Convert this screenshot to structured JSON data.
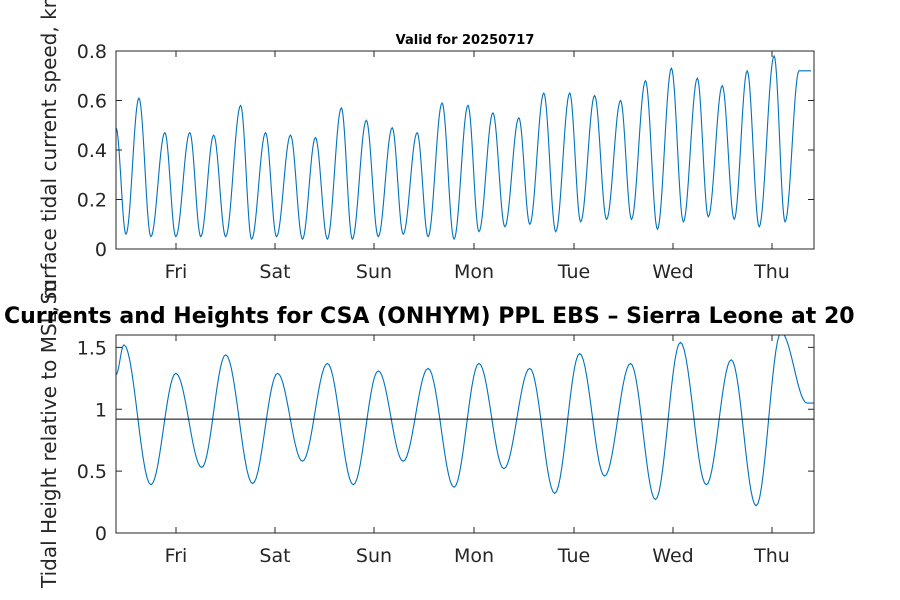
{
  "chart_data": [
    {
      "type": "line",
      "title": "Valid for 20250717",
      "xlabel": "",
      "ylabel": "Surface tidal current speed, kn",
      "x_tick_labels": [
        "Fri",
        "Sat",
        "Sun",
        "Mon",
        "Tue",
        "Wed",
        "Thu"
      ],
      "xlim_days": [
        0,
        7
      ],
      "ylim": [
        0,
        0.8
      ],
      "yticks": [
        "0",
        "0.2",
        "0.4",
        "0.6",
        "0.8"
      ],
      "grid": false,
      "line_color": "#0072bd",
      "series": [
        {
          "name": "",
          "x_days": [
            0.0,
            0.1,
            0.23,
            0.35,
            0.49,
            0.6,
            0.74,
            0.85,
            0.98,
            1.1,
            1.25,
            1.36,
            1.5,
            1.61,
            1.75,
            1.87,
            2.0,
            2.12,
            2.26,
            2.37,
            2.51,
            2.63,
            2.77,
            2.88,
            3.02,
            3.13,
            3.27,
            3.39,
            3.53,
            3.64,
            3.78,
            3.9,
            4.04,
            4.15,
            4.29,
            4.41,
            4.55,
            4.66,
            4.8,
            4.92,
            5.06,
            5.17,
            5.31,
            5.43,
            5.57,
            5.69,
            5.83,
            5.94,
            6.08,
            6.2,
            6.33,
            6.45,
            6.6,
            6.71,
            6.85,
            6.97
          ],
          "values": [
            0.49,
            0.06,
            0.61,
            0.05,
            0.47,
            0.05,
            0.47,
            0.05,
            0.46,
            0.05,
            0.58,
            0.04,
            0.47,
            0.05,
            0.46,
            0.04,
            0.45,
            0.04,
            0.57,
            0.04,
            0.52,
            0.05,
            0.49,
            0.06,
            0.47,
            0.05,
            0.59,
            0.04,
            0.58,
            0.07,
            0.55,
            0.09,
            0.53,
            0.1,
            0.63,
            0.07,
            0.63,
            0.11,
            0.62,
            0.12,
            0.6,
            0.12,
            0.68,
            0.08,
            0.73,
            0.11,
            0.69,
            0.13,
            0.66,
            0.12,
            0.72,
            0.09,
            0.78,
            0.11,
            0.72,
            0.72
          ]
        }
      ]
    },
    {
      "type": "line",
      "title": "Currents and Heights for CSA (ONHYM) PPL EBS  – Sierra Leone at 20",
      "xlabel": "",
      "ylabel": "Tidal Height relative to MSL, m",
      "x_tick_labels": [
        "Fri",
        "Sat",
        "Sun",
        "Mon",
        "Tue",
        "Wed",
        "Thu"
      ],
      "xlim_days": [
        0,
        7
      ],
      "ylim": [
        0,
        1.6
      ],
      "yticks": [
        "0",
        "0.5",
        "1",
        "1.5"
      ],
      "grid": false,
      "line_color": "#0072bd",
      "reference_line": 0.92,
      "reference_line_color": "#000000",
      "series": [
        {
          "name": "",
          "x_days": [
            0.0,
            0.08,
            0.35,
            0.6,
            0.86,
            1.1,
            1.37,
            1.62,
            1.87,
            2.12,
            2.38,
            2.63,
            2.88,
            3.13,
            3.39,
            3.64,
            3.89,
            4.15,
            4.4,
            4.65,
            4.9,
            5.16,
            5.41,
            5.66,
            5.92,
            6.17,
            6.42,
            6.67,
            6.93,
            7.0
          ],
          "values": [
            1.28,
            1.52,
            0.39,
            1.29,
            0.53,
            1.44,
            0.4,
            1.29,
            0.58,
            1.37,
            0.39,
            1.31,
            0.58,
            1.33,
            0.37,
            1.37,
            0.52,
            1.33,
            0.32,
            1.45,
            0.46,
            1.37,
            0.27,
            1.54,
            0.39,
            1.4,
            0.22,
            1.62,
            1.05,
            1.05
          ]
        }
      ]
    }
  ]
}
